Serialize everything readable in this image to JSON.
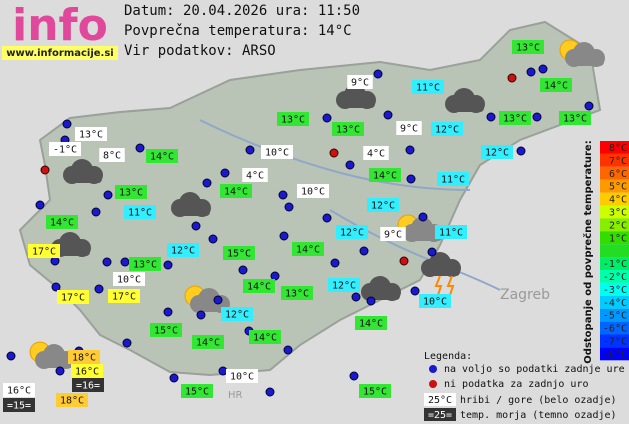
{
  "header": {
    "logo": "info",
    "site": "www.informacije.si",
    "date_line": "Datum: 20.04.2026 ura: 11:50",
    "avg_line": "Povprečna temperatura: 14°C",
    "source_line": "Vir podatkov: ARSO"
  },
  "map": {
    "city": "Zagreb",
    "country": "HR"
  },
  "stations": [
    {
      "text": "13°C",
      "color": "#33e633"
    },
    {
      "text": "14°C",
      "color": "#33e633"
    },
    {
      "text": "9°C",
      "color": "#ffffff"
    },
    {
      "text": "11°C",
      "color": "#33eeff"
    },
    {
      "text": "13°C",
      "color": "#33e633"
    },
    {
      "text": "13°C",
      "color": "#33e633"
    },
    {
      "text": "9°C",
      "color": "#ffffff"
    },
    {
      "text": "12°C",
      "color": "#33eeff"
    },
    {
      "text": "13°C",
      "color": "#33e633"
    },
    {
      "text": "13°C",
      "color": "#33e633"
    },
    {
      "text": "13°C",
      "color": "#ffffff"
    },
    {
      "text": "-1°C",
      "color": "#ffffff"
    },
    {
      "text": "8°C",
      "color": "#ffffff"
    },
    {
      "text": "14°C",
      "color": "#33e633"
    },
    {
      "text": "10°C",
      "color": "#ffffff"
    },
    {
      "text": "4°C",
      "color": "#ffffff"
    },
    {
      "text": "12°C",
      "color": "#33eeff"
    },
    {
      "text": "14°C",
      "color": "#33e633"
    },
    {
      "text": "11°C",
      "color": "#33eeff"
    },
    {
      "text": "4°C",
      "color": "#ffffff"
    },
    {
      "text": "13°C",
      "color": "#33e633"
    },
    {
      "text": "14°C",
      "color": "#33e633"
    },
    {
      "text": "10°C",
      "color": "#ffffff"
    },
    {
      "text": "11°C",
      "color": "#33eeff"
    },
    {
      "text": "12°C",
      "color": "#33eeff"
    },
    {
      "text": "14°C",
      "color": "#33e633"
    },
    {
      "text": "12°C",
      "color": "#33eeff"
    },
    {
      "text": "9°C",
      "color": "#ffffff"
    },
    {
      "text": "11°C",
      "color": "#33eeff"
    },
    {
      "text": "17°C",
      "color": "#ffff33"
    },
    {
      "text": "12°C",
      "color": "#33eeff"
    },
    {
      "text": "15°C",
      "color": "#33e633"
    },
    {
      "text": "14°C",
      "color": "#33e633"
    },
    {
      "text": "13°C",
      "color": "#33e633"
    },
    {
      "text": "10°C",
      "color": "#ffffff"
    },
    {
      "text": "14°C",
      "color": "#33e633"
    },
    {
      "text": "13°C",
      "color": "#33e633"
    },
    {
      "text": "12°C",
      "color": "#33eeff"
    },
    {
      "text": "17°C",
      "color": "#ffff33"
    },
    {
      "text": "17°C",
      "color": "#ffff33"
    },
    {
      "text": "10°C",
      "color": "#33eeff"
    },
    {
      "text": "12°C",
      "color": "#33eeff"
    },
    {
      "text": "15°C",
      "color": "#33e633"
    },
    {
      "text": "14°C",
      "color": "#33e633"
    },
    {
      "text": "14°C",
      "color": "#33e633"
    },
    {
      "text": "14°C",
      "color": "#33e633"
    },
    {
      "text": "18°C",
      "color": "#ffcc33"
    },
    {
      "text": "16°C",
      "color": "#ffff33"
    },
    {
      "text": "16°C",
      "color": "#ffffff"
    },
    {
      "text": "=16=",
      "color": "#333333"
    },
    {
      "text": "10°C",
      "color": "#ffffff"
    },
    {
      "text": "15°C",
      "color": "#33e633"
    },
    {
      "text": "15°C",
      "color": "#33e633"
    },
    {
      "text": "=15=",
      "color": "#333333"
    },
    {
      "text": "18°C",
      "color": "#ffcc33"
    }
  ],
  "scale": {
    "title": "Odstopanje od povprečne temperature:",
    "steps": [
      {
        "label": "8°C",
        "color": "#ff0000"
      },
      {
        "label": "7°C",
        "color": "#ff3300"
      },
      {
        "label": "6°C",
        "color": "#ff6600"
      },
      {
        "label": "5°C",
        "color": "#ff9900"
      },
      {
        "label": "4°C",
        "color": "#ffcc00"
      },
      {
        "label": "3°C",
        "color": "#ccff00"
      },
      {
        "label": "2°C",
        "color": "#88ee00"
      },
      {
        "label": "1°C",
        "color": "#33dd00"
      },
      {
        "color": "#22dd22"
      },
      {
        "label": "-1°C",
        "color": "#00ee66"
      },
      {
        "label": "-2°C",
        "color": "#00ffaa"
      },
      {
        "label": "-3°C",
        "color": "#00ffee"
      },
      {
        "label": "-4°C",
        "color": "#00ccff"
      },
      {
        "label": "-5°C",
        "color": "#0099ff"
      },
      {
        "label": "-6°C",
        "color": "#0066ff"
      },
      {
        "label": "-7°C",
        "color": "#0033ff"
      },
      {
        "label": "-8°C",
        "color": "#0000ff"
      }
    ]
  },
  "legend": {
    "title": "Legenda:",
    "available": "na voljo so podatki zadnje ure",
    "missing": "ni podatka za zadnjo uro",
    "mountain_sample": "25°C",
    "mountain_text": "hribi / gore (belo ozadje)",
    "sea_sample": "=25=",
    "sea_text": "temp. morja (temno ozadje)"
  }
}
